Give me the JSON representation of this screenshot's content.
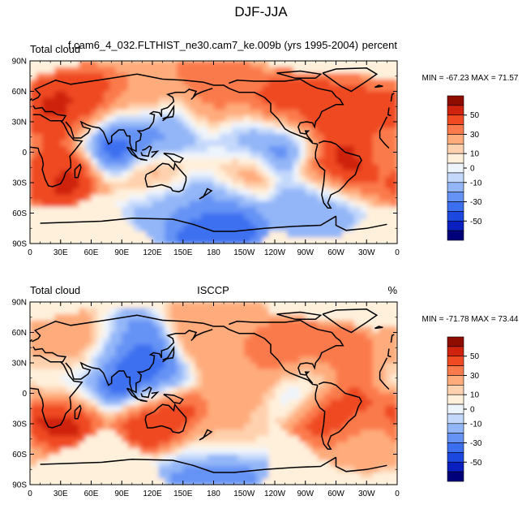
{
  "figure": {
    "title": "DJF-JJA"
  },
  "chart_data": [
    {
      "type": "heatmap",
      "panel": "top",
      "left_title": "Total cloud",
      "center_title": "f.cam6_4_032.FLTHIST_ne30.cam7_ke.009b (yrs 1995-2004)",
      "right_title": "percent",
      "stats": "MIN = -67.23 MAX =  71.57",
      "min": -67.23,
      "max": 71.57,
      "x_ticks": [
        "0",
        "30E",
        "60E",
        "90E",
        "120E",
        "150E",
        "180",
        "150W",
        "120W",
        "90W",
        "60W",
        "30W",
        "0"
      ],
      "y_ticks": [
        "90N",
        "60N",
        "30N",
        "0",
        "30S",
        "60S",
        "90S"
      ],
      "x_range": [
        0,
        360
      ],
      "y_range": [
        -90,
        90
      ],
      "colorbar": {
        "levels": [
          -60,
          -50,
          -40,
          -30,
          -20,
          -10,
          -5,
          0,
          5,
          10,
          20,
          30,
          40,
          50,
          60
        ],
        "labels": [
          "50",
          "30",
          "10",
          "0",
          "-10",
          "-30",
          "-50"
        ]
      },
      "features": [
        {
          "lon": 35,
          "lat": 38,
          "value": 45
        },
        {
          "lon": 60,
          "lat": 45,
          "value": 40
        },
        {
          "lon": 110,
          "lat": 48,
          "value": 20
        },
        {
          "lon": 80,
          "lat": 15,
          "value": -45
        },
        {
          "lon": 110,
          "lat": 15,
          "value": -30
        },
        {
          "lon": 145,
          "lat": 20,
          "value": -25
        },
        {
          "lon": 25,
          "lat": -15,
          "value": 50
        },
        {
          "lon": 5,
          "lat": -5,
          "value": 20
        },
        {
          "lon": 130,
          "lat": -20,
          "value": 25
        },
        {
          "lon": 200,
          "lat": -15,
          "value": 30
        },
        {
          "lon": 180,
          "lat": 35,
          "value": 30
        },
        {
          "lon": 250,
          "lat": 40,
          "value": 40
        },
        {
          "lon": 290,
          "lat": 30,
          "value": 45
        },
        {
          "lon": 320,
          "lat": 35,
          "value": 35
        },
        {
          "lon": 300,
          "lat": -15,
          "value": 50
        },
        {
          "lon": 200,
          "lat": 10,
          "value": -30
        },
        {
          "lon": 250,
          "lat": 10,
          "value": -35
        },
        {
          "lon": 180,
          "lat": -40,
          "value": -25
        },
        {
          "lon": 280,
          "lat": -45,
          "value": -20
        },
        {
          "lon": 180,
          "lat": -75,
          "value": -40
        },
        {
          "lon": 180,
          "lat": 80,
          "value": 25
        },
        {
          "lon": 140,
          "lat": -45,
          "value": -20
        }
      ]
    },
    {
      "type": "heatmap",
      "panel": "bottom",
      "left_title": "Total cloud",
      "center_title": "ISCCP",
      "right_title": "%",
      "stats": "MIN = -71.78 MAX =  73.44",
      "min": -71.78,
      "max": 73.44,
      "x_ticks": [
        "0",
        "30E",
        "60E",
        "90E",
        "120E",
        "150E",
        "180",
        "150W",
        "120W",
        "90W",
        "60W",
        "30W",
        "0"
      ],
      "y_ticks": [
        "90N",
        "60N",
        "30N",
        "0",
        "30S",
        "60S",
        "90S"
      ],
      "x_range": [
        0,
        360
      ],
      "y_range": [
        -90,
        90
      ],
      "colorbar": {
        "levels": [
          -60,
          -50,
          -40,
          -30,
          -20,
          -10,
          -5,
          0,
          5,
          10,
          20,
          30,
          40,
          50,
          60
        ],
        "labels": [
          "50",
          "30",
          "10",
          "0",
          "-10",
          "-30",
          "-50"
        ]
      },
      "features": [
        {
          "lon": 20,
          "lat": 30,
          "value": 20
        },
        {
          "lon": 60,
          "lat": 40,
          "value": 25
        },
        {
          "lon": 85,
          "lat": 25,
          "value": -50
        },
        {
          "lon": 100,
          "lat": 40,
          "value": -30
        },
        {
          "lon": 115,
          "lat": 15,
          "value": -35
        },
        {
          "lon": 20,
          "lat": -15,
          "value": 55
        },
        {
          "lon": 130,
          "lat": -20,
          "value": 45
        },
        {
          "lon": 300,
          "lat": -15,
          "value": 45
        },
        {
          "lon": 250,
          "lat": 35,
          "value": 35
        },
        {
          "lon": 300,
          "lat": 30,
          "value": 30
        },
        {
          "lon": 210,
          "lat": 15,
          "value": 15
        },
        {
          "lon": 180,
          "lat": 50,
          "value": 20
        },
        {
          "lon": 25,
          "lat": 10,
          "value": -25
        },
        {
          "lon": 270,
          "lat": 10,
          "value": -15
        },
        {
          "lon": 180,
          "lat": -50,
          "value": 15
        },
        {
          "lon": 180,
          "lat": -75,
          "value": -35
        },
        {
          "lon": 330,
          "lat": -40,
          "value": 15
        },
        {
          "lon": 180,
          "lat": 75,
          "value": 15
        }
      ]
    }
  ]
}
